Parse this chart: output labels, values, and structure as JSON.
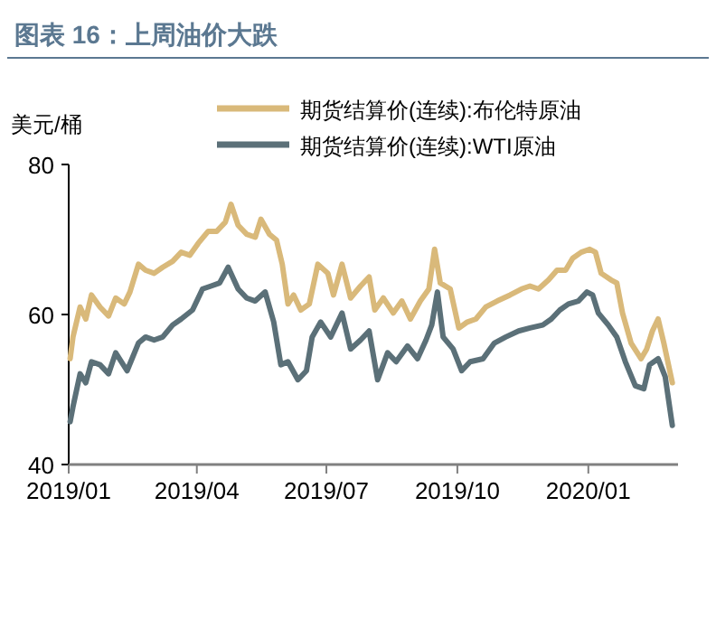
{
  "chart_data": {
    "type": "line",
    "title": "图表 16：上周油价大跌",
    "ylabel": "美元/桶",
    "legend": "top right",
    "grid": false,
    "marker": "none",
    "line_style": "solid",
    "xlim": [
      "2019-01-01",
      "2020-03-04"
    ],
    "xticks": [
      {
        "value": "2019-01-01",
        "label": "2019/01"
      },
      {
        "value": "2019-04-01",
        "label": "2019/04"
      },
      {
        "value": "2019-07-01",
        "label": "2019/07"
      },
      {
        "value": "2019-10-01",
        "label": "2019/10"
      },
      {
        "value": "2020-01-01",
        "label": "2020/01"
      }
    ],
    "ylim": [
      40,
      80
    ],
    "yticks": [
      40,
      60,
      80
    ],
    "series": [
      {
        "name": "期货结算价(连续):布伦特原油",
        "color": "#d9b97a",
        "x": [
          "2019-01-02",
          "2019-01-04",
          "2019-01-09",
          "2019-01-13",
          "2019-01-17",
          "2019-01-23",
          "2019-01-29",
          "2019-02-03",
          "2019-02-09",
          "2019-02-13",
          "2019-02-19",
          "2019-02-24",
          "2019-03-02",
          "2019-03-08",
          "2019-03-15",
          "2019-03-21",
          "2019-03-27",
          "2019-04-02",
          "2019-04-09",
          "2019-04-15",
          "2019-04-21",
          "2019-04-25",
          "2019-04-30",
          "2019-05-06",
          "2019-05-12",
          "2019-05-16",
          "2019-05-22",
          "2019-05-27",
          "2019-05-31",
          "2019-06-04",
          "2019-06-08",
          "2019-06-13",
          "2019-06-19",
          "2019-06-25",
          "2019-07-02",
          "2019-07-06",
          "2019-07-12",
          "2019-07-18",
          "2019-07-25",
          "2019-07-31",
          "2019-08-04",
          "2019-08-10",
          "2019-08-17",
          "2019-08-23",
          "2019-08-29",
          "2019-09-05",
          "2019-09-11",
          "2019-09-15",
          "2019-09-19",
          "2019-09-26",
          "2019-10-02",
          "2019-10-08",
          "2019-10-14",
          "2019-10-21",
          "2019-10-29",
          "2019-11-07",
          "2019-11-15",
          "2019-11-21",
          "2019-11-27",
          "2019-12-04",
          "2019-12-10",
          "2019-12-16",
          "2019-12-21",
          "2019-12-27",
          "2020-01-02",
          "2020-01-06",
          "2020-01-10",
          "2020-01-17",
          "2020-01-21",
          "2020-01-25",
          "2020-01-31",
          "2020-02-07",
          "2020-02-11",
          "2020-02-15",
          "2020-02-19",
          "2020-02-23",
          "2020-02-29"
        ],
        "values": [
          54.1,
          57,
          61,
          59.4,
          62.6,
          61,
          59.8,
          62.2,
          61.4,
          63,
          66.7,
          65.9,
          65.5,
          66.3,
          67.1,
          68.3,
          67.9,
          69.5,
          71.1,
          71.1,
          72.3,
          74.7,
          71.9,
          70.7,
          70.3,
          72.7,
          70.7,
          69.9,
          66.7,
          61.4,
          62.6,
          60.6,
          61.4,
          66.7,
          65.5,
          62.6,
          66.7,
          62.2,
          63.8,
          65,
          60.6,
          62.2,
          60.2,
          61.8,
          59.4,
          61.8,
          63.4,
          68.7,
          64.2,
          63.4,
          58.2,
          59,
          59.4,
          61,
          61.8,
          62.6,
          63.4,
          63.8,
          63.4,
          64.6,
          65.9,
          65.9,
          67.5,
          68.3,
          68.7,
          68.3,
          65.5,
          64.6,
          64.2,
          60.2,
          56.2,
          54.1,
          55.4,
          57.8,
          59.4,
          56.2,
          50.9
        ]
      },
      {
        "name": "期货结算价(连续):WTI原油",
        "color": "#5b7078",
        "x": [
          "2019-01-02",
          "2019-01-04",
          "2019-01-09",
          "2019-01-13",
          "2019-01-17",
          "2019-01-23",
          "2019-01-29",
          "2019-02-03",
          "2019-02-11",
          "2019-02-19",
          "2019-02-24",
          "2019-03-02",
          "2019-03-08",
          "2019-03-15",
          "2019-03-21",
          "2019-03-29",
          "2019-04-05",
          "2019-04-11",
          "2019-04-17",
          "2019-04-23",
          "2019-04-30",
          "2019-05-06",
          "2019-05-12",
          "2019-05-19",
          "2019-05-25",
          "2019-05-30",
          "2019-06-04",
          "2019-06-11",
          "2019-06-17",
          "2019-06-21",
          "2019-06-27",
          "2019-07-04",
          "2019-07-12",
          "2019-07-18",
          "2019-07-25",
          "2019-07-31",
          "2019-08-06",
          "2019-08-13",
          "2019-08-19",
          "2019-08-27",
          "2019-09-03",
          "2019-09-09",
          "2019-09-13",
          "2019-09-17",
          "2019-09-21",
          "2019-09-28",
          "2019-10-04",
          "2019-10-10",
          "2019-10-19",
          "2019-10-27",
          "2019-11-04",
          "2019-11-13",
          "2019-11-21",
          "2019-11-30",
          "2019-12-06",
          "2019-12-12",
          "2019-12-18",
          "2019-12-25",
          "2019-12-31",
          "2020-01-04",
          "2020-01-08",
          "2020-01-15",
          "2020-01-21",
          "2020-01-27",
          "2020-02-03",
          "2020-02-09",
          "2020-02-13",
          "2020-02-19",
          "2020-02-24",
          "2020-02-29"
        ],
        "values": [
          45.7,
          47.7,
          52.1,
          50.9,
          53.7,
          53.3,
          52.1,
          54.9,
          52.5,
          56.2,
          57,
          56.6,
          57,
          58.6,
          59.4,
          60.6,
          63.4,
          63.8,
          64.2,
          66.3,
          63.4,
          62.2,
          61.8,
          63,
          59,
          53.3,
          53.7,
          51.3,
          52.5,
          57,
          59,
          57,
          60.2,
          55.4,
          56.6,
          57.8,
          51.3,
          54.9,
          53.7,
          55.8,
          54.1,
          56.6,
          58.6,
          63,
          57,
          55.4,
          52.5,
          53.7,
          54.1,
          56.2,
          57,
          57.8,
          58.2,
          58.6,
          59.4,
          60.6,
          61.4,
          61.8,
          63,
          62.6,
          60.2,
          58.6,
          57,
          53.7,
          50.5,
          50.1,
          53.3,
          54.1,
          51.7,
          45.2
        ]
      }
    ]
  }
}
